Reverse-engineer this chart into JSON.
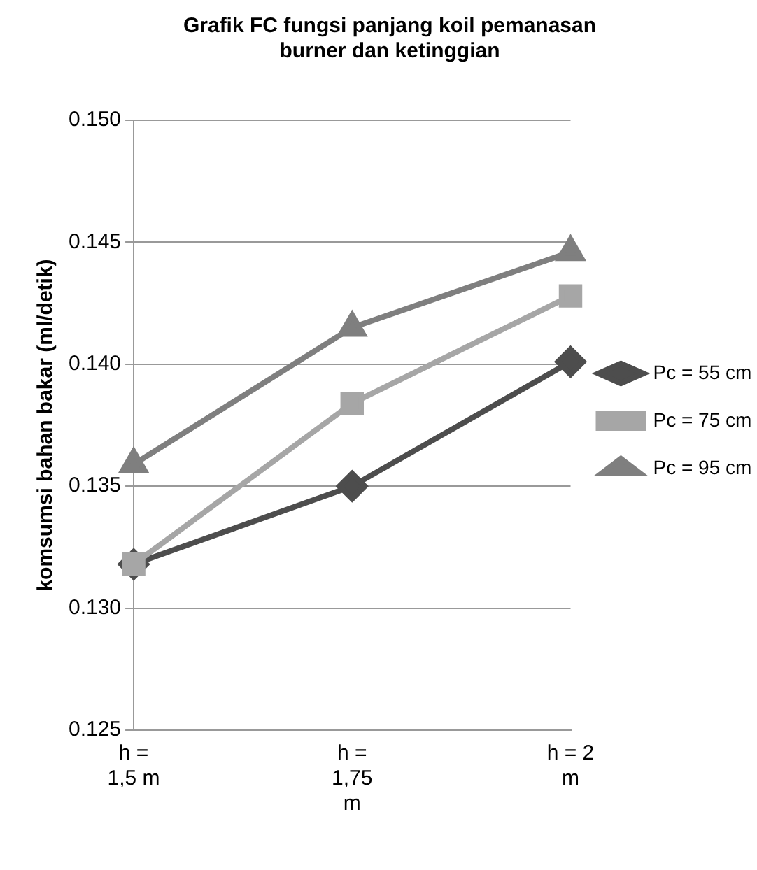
{
  "chart_data": {
    "type": "line",
    "title": "Grafik FC fungsi panjang koil pemanasan burner dan ketinggian",
    "ylabel": "komsumsi bahan bakar (ml/detik)",
    "categories": [
      "h = 1,5 m",
      "h = 1,75 m",
      "h = 2 m"
    ],
    "series": [
      {
        "name": "Pc = 55 cm",
        "color": "#4d4d4d",
        "marker": "diamond",
        "values": [
          0.1318,
          0.135,
          0.1401
        ]
      },
      {
        "name": "Pc = 75 cm",
        "color": "#a6a6a6",
        "marker": "square",
        "values": [
          0.1318,
          0.1384,
          0.1428
        ]
      },
      {
        "name": "Pc = 95 cm",
        "color": "#7f7f7f",
        "marker": "triangle",
        "values": [
          0.1359,
          0.1415,
          0.1446
        ]
      }
    ],
    "ylim": [
      0.125,
      0.15
    ],
    "yticks": [
      {
        "value": 0.125,
        "label": "0.125"
      },
      {
        "value": 0.13,
        "label": "0.130"
      },
      {
        "value": 0.135,
        "label": "0.135"
      },
      {
        "value": 0.14,
        "label": "0.140"
      },
      {
        "value": 0.145,
        "label": "0.145"
      },
      {
        "value": 0.15,
        "label": "0.150"
      }
    ],
    "grid": "y",
    "legend": "right"
  }
}
